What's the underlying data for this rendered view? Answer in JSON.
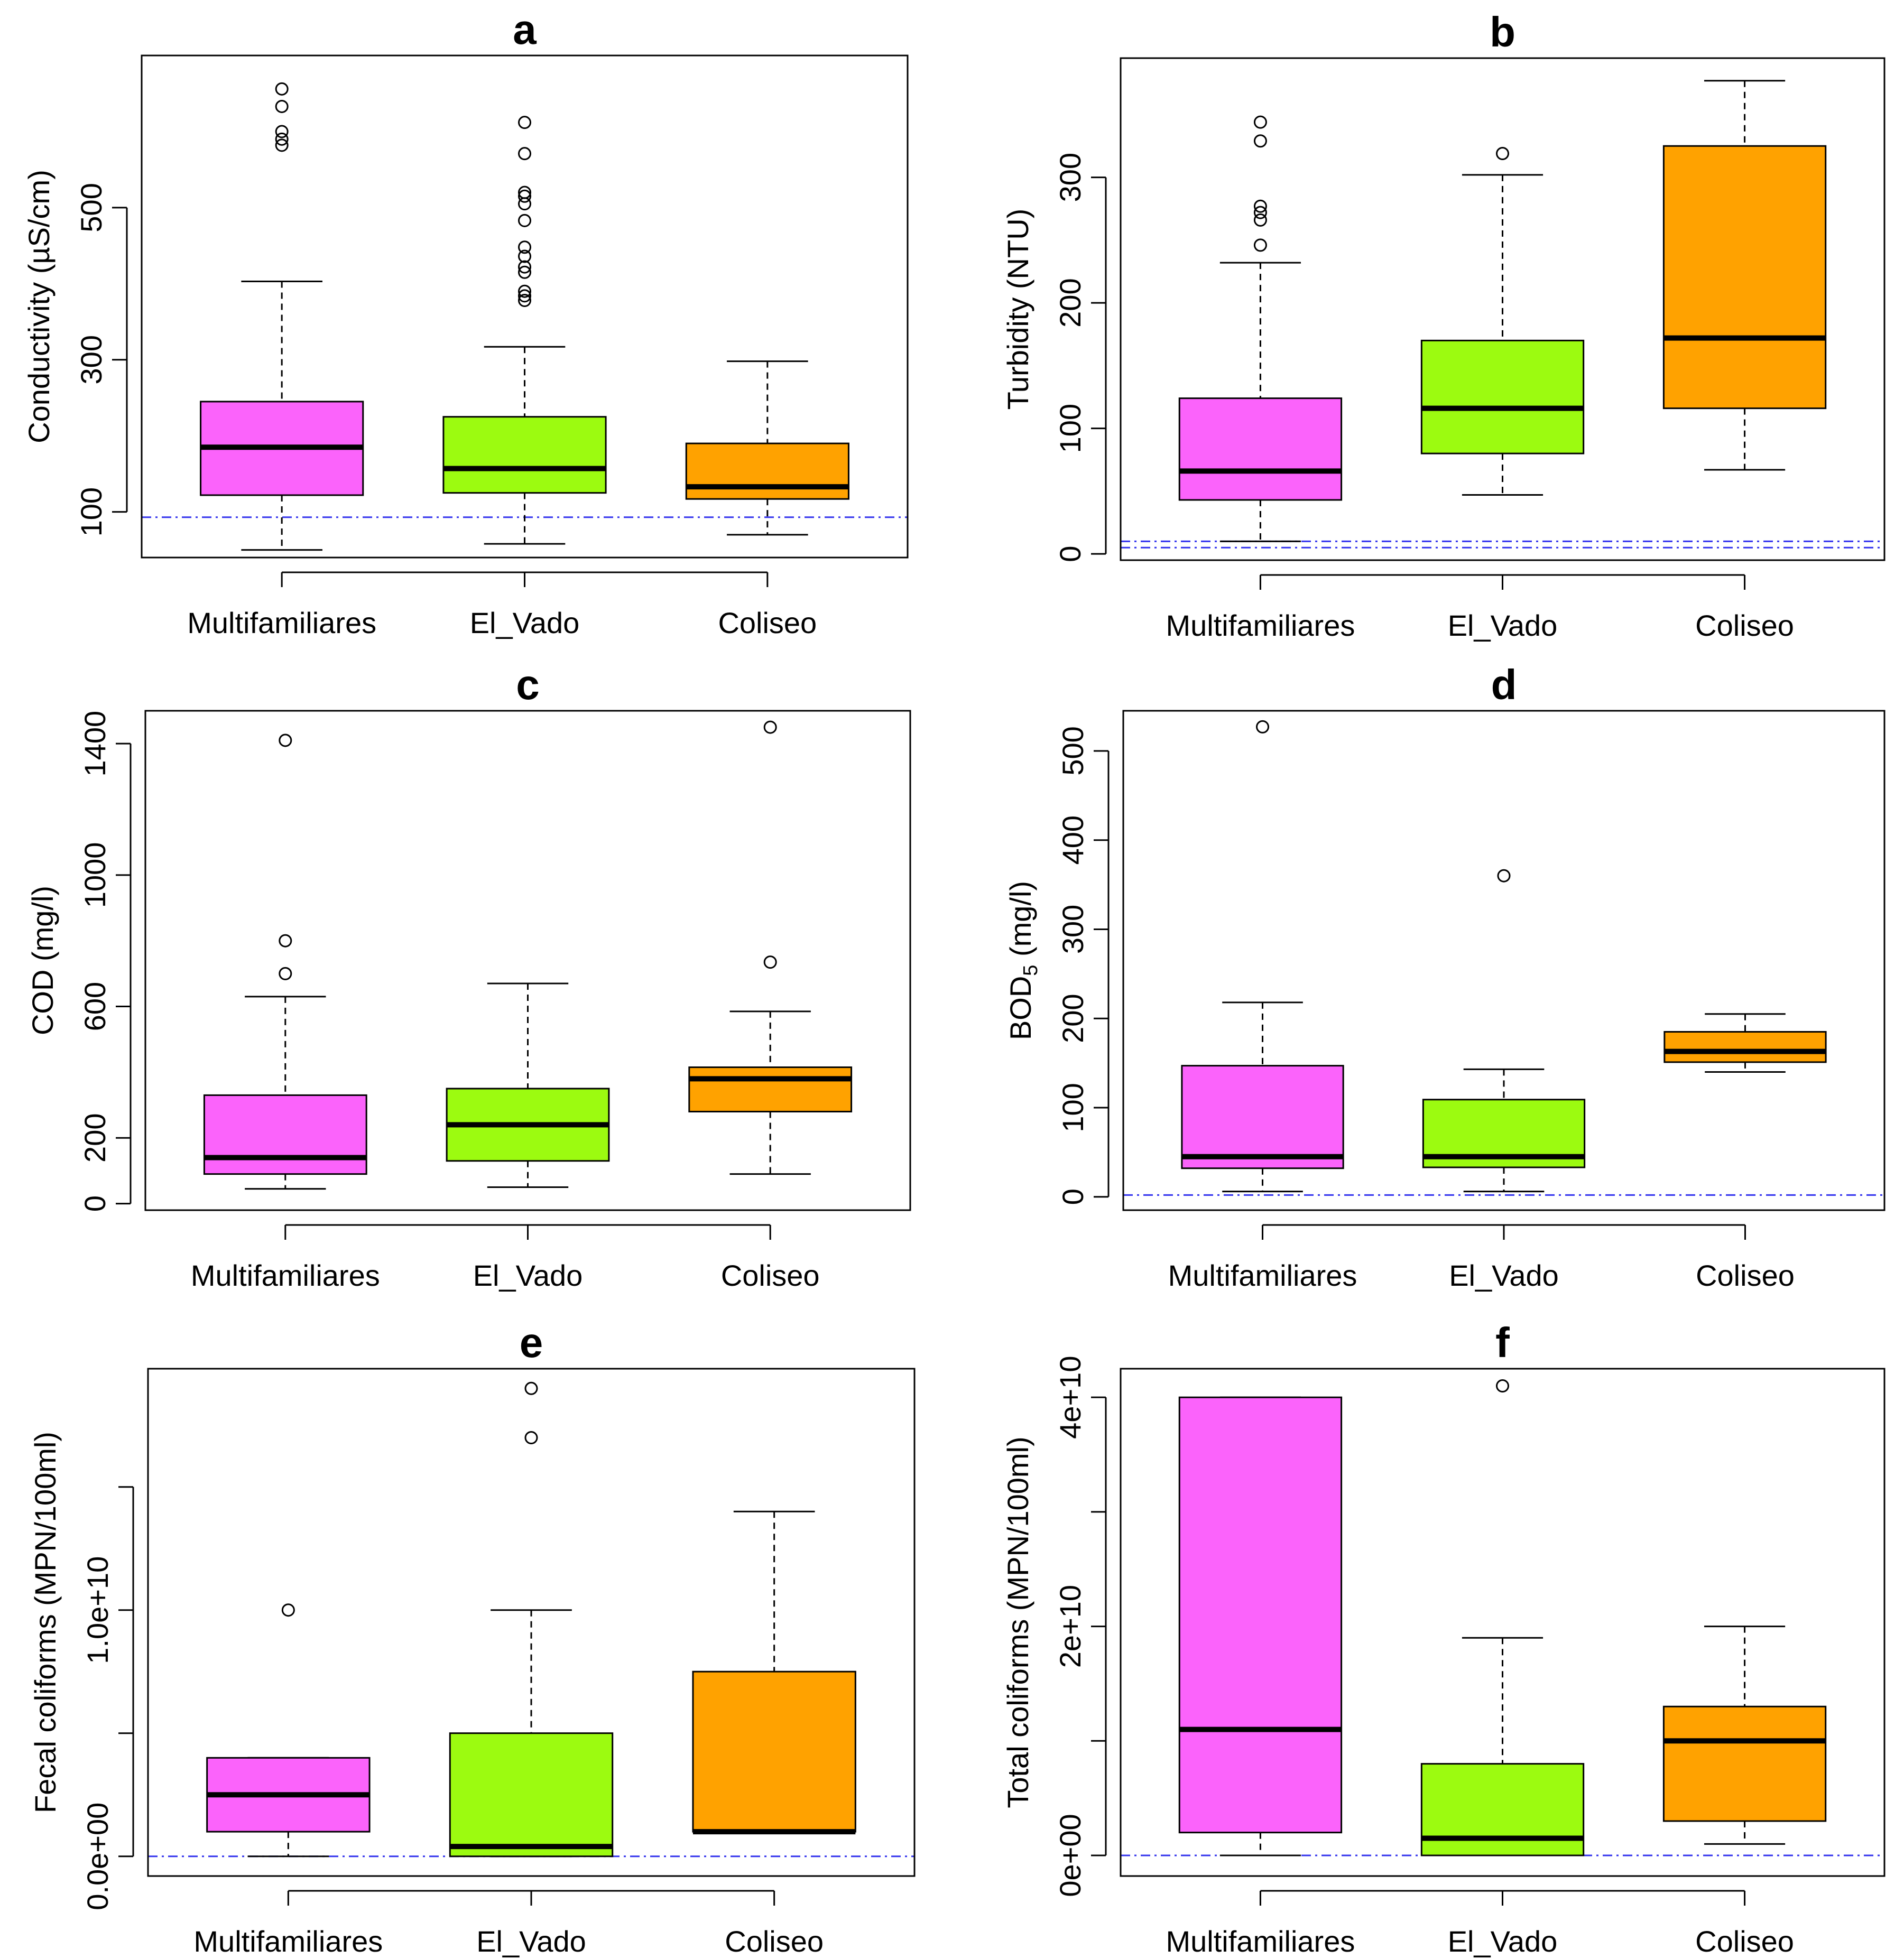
{
  "colors": {
    "Multifamiliares": "#fb63fb",
    "El_Vado": "#9cfb10",
    "Coliseo": "#ffa200",
    "reference_line": "#3333ee"
  },
  "chart_data": [
    {
      "panel": "a",
      "type": "boxplot",
      "title": "a",
      "ylabel": "Conductivity (µS/cm)",
      "categories": [
        "Multifamiliares",
        "El_Vado",
        "Coliseo"
      ],
      "ylim": [
        40,
        700
      ],
      "yticks": [
        100,
        300,
        500
      ],
      "ytick_labels": [
        "100",
        "300",
        "500"
      ],
      "reference_lines": [
        93
      ],
      "boxes": [
        {
          "name": "Multifamiliares",
          "whisker_low": 50,
          "q1": 122,
          "median": 185,
          "q3": 245,
          "whisker_high": 403,
          "outliers": [
            582,
            590,
            600,
            633,
            656
          ]
        },
        {
          "name": "El_Vado",
          "whisker_low": 58,
          "q1": 125,
          "median": 157,
          "q3": 225,
          "whisker_high": 317,
          "outliers": [
            378,
            384,
            390,
            415,
            422,
            436,
            448,
            483,
            505,
            515,
            520,
            571,
            612
          ]
        },
        {
          "name": "Coliseo",
          "whisker_low": 70,
          "q1": 117,
          "median": 133,
          "q3": 190,
          "whisker_high": 298,
          "outliers": []
        }
      ]
    },
    {
      "panel": "b",
      "type": "boxplot",
      "title": "b",
      "ylabel": "Turbidity (NTU)",
      "categories": [
        "Multifamiliares",
        "El_Vado",
        "Coliseo"
      ],
      "ylim": [
        -5,
        395
      ],
      "yticks": [
        0,
        100,
        200,
        300
      ],
      "ytick_labels": [
        "0",
        "100",
        "200",
        "300"
      ],
      "reference_lines": [
        5,
        10
      ],
      "boxes": [
        {
          "name": "Multifamiliares",
          "whisker_low": 10,
          "q1": 43,
          "median": 66,
          "q3": 124,
          "whisker_high": 232,
          "outliers": [
            246,
            266,
            272,
            277,
            329,
            344
          ]
        },
        {
          "name": "El_Vado",
          "whisker_low": 47,
          "q1": 80,
          "median": 116,
          "q3": 170,
          "whisker_high": 302,
          "outliers": [
            319
          ]
        },
        {
          "name": "Coliseo",
          "whisker_low": 67,
          "q1": 116,
          "median": 172,
          "q3": 325,
          "whisker_high": 377,
          "outliers": []
        }
      ]
    },
    {
      "panel": "c",
      "type": "boxplot",
      "title": "c",
      "ylabel": "COD (mg/l)",
      "categories": [
        "Multifamiliares",
        "El_Vado",
        "Coliseo"
      ],
      "ylim": [
        -20,
        1500
      ],
      "yticks": [
        0,
        200,
        600,
        1000,
        1400
      ],
      "ytick_labels": [
        "0",
        "200",
        "600",
        "1000",
        "1400"
      ],
      "reference_lines": [],
      "boxes": [
        {
          "name": "Multifamiliares",
          "whisker_low": 45,
          "q1": 90,
          "median": 140,
          "q3": 330,
          "whisker_high": 630,
          "outliers": [
            700,
            800,
            1410
          ]
        },
        {
          "name": "El_Vado",
          "whisker_low": 50,
          "q1": 130,
          "median": 240,
          "q3": 350,
          "whisker_high": 670,
          "outliers": []
        },
        {
          "name": "Coliseo",
          "whisker_low": 90,
          "q1": 280,
          "median": 380,
          "q3": 415,
          "whisker_high": 585,
          "outliers": [
            735,
            1450
          ]
        }
      ]
    },
    {
      "panel": "d",
      "type": "boxplot",
      "title": "d",
      "ylabel": "BOD5 (mg/l)",
      "ylabel_main": "BOD",
      "ylabel_sub": "5",
      "ylabel_rest": " (mg/l)",
      "categories": [
        "Multifamiliares",
        "El_Vado",
        "Coliseo"
      ],
      "ylim": [
        -15,
        545
      ],
      "yticks": [
        0,
        100,
        200,
        300,
        400,
        500
      ],
      "ytick_labels": [
        "0",
        "100",
        "200",
        "300",
        "400",
        "500"
      ],
      "reference_lines": [
        2
      ],
      "boxes": [
        {
          "name": "Multifamiliares",
          "whisker_low": 6,
          "q1": 32,
          "median": 45,
          "q3": 147,
          "whisker_high": 218,
          "outliers": [
            527
          ]
        },
        {
          "name": "El_Vado",
          "whisker_low": 6,
          "q1": 33,
          "median": 45,
          "q3": 109,
          "whisker_high": 143,
          "outliers": [
            360
          ]
        },
        {
          "name": "Coliseo",
          "whisker_low": 140,
          "q1": 151,
          "median": 163,
          "q3": 185,
          "whisker_high": 205,
          "outliers": []
        }
      ]
    },
    {
      "panel": "e",
      "type": "boxplot",
      "title": "e",
      "ylabel": "Fecal coliforms (MPN/100ml)",
      "categories": [
        "Multifamiliares",
        "El_Vado",
        "Coliseo"
      ],
      "ylim": [
        -800000000.0,
        19800000000.0
      ],
      "yticks": [
        0,
        5000000000.0,
        10000000000.0,
        15000000000.0
      ],
      "ytick_labels": [
        "0.0e+00",
        "",
        "1.0e+10",
        ""
      ],
      "reference_lines": [
        0
      ],
      "boxes": [
        {
          "name": "Multifamiliares",
          "whisker_low": 0,
          "q1": 1000000000.0,
          "median": 2500000000.0,
          "q3": 4000000000.0,
          "whisker_high": 4000000000.0,
          "outliers": [
            10000000000.0
          ]
        },
        {
          "name": "El_Vado",
          "whisker_low": 0,
          "q1": 0,
          "median": 400000000.0,
          "q3": 5000000000.0,
          "whisker_high": 10000000000.0,
          "outliers": [
            17000000000.0,
            19000000000.0
          ]
        },
        {
          "name": "Coliseo",
          "whisker_low": 1000000000.0,
          "q1": 1000000000.0,
          "median": 1000000000.0,
          "q3": 7500000000.0,
          "whisker_high": 14000000000.0,
          "outliers": []
        }
      ]
    },
    {
      "panel": "f",
      "type": "boxplot",
      "title": "f",
      "ylabel": "Total coliforms (MPN/100ml)",
      "categories": [
        "Multifamiliares",
        "El_Vado",
        "Coliseo"
      ],
      "ylim": [
        -1800000000.0,
        42500000000.0
      ],
      "yticks": [
        0,
        10000000000.0,
        20000000000.0,
        30000000000.0,
        40000000000.0
      ],
      "ytick_labels": [
        "0e+00",
        "",
        "2e+10",
        "",
        "4e+10"
      ],
      "reference_lines": [
        0
      ],
      "boxes": [
        {
          "name": "Multifamiliares",
          "whisker_low": 0,
          "q1": 2000000000.0,
          "median": 11000000000.0,
          "q3": 40000000000.0,
          "whisker_high": 40000000000.0,
          "outliers": []
        },
        {
          "name": "El_Vado",
          "whisker_low": 0,
          "q1": 0,
          "median": 1500000000.0,
          "q3": 8000000000.0,
          "whisker_high": 19000000000.0,
          "outliers": [
            41000000000.0
          ]
        },
        {
          "name": "Coliseo",
          "whisker_low": 1000000000.0,
          "q1": 3000000000.0,
          "median": 10000000000.0,
          "q3": 13000000000.0,
          "whisker_high": 20000000000.0,
          "outliers": []
        }
      ]
    }
  ]
}
